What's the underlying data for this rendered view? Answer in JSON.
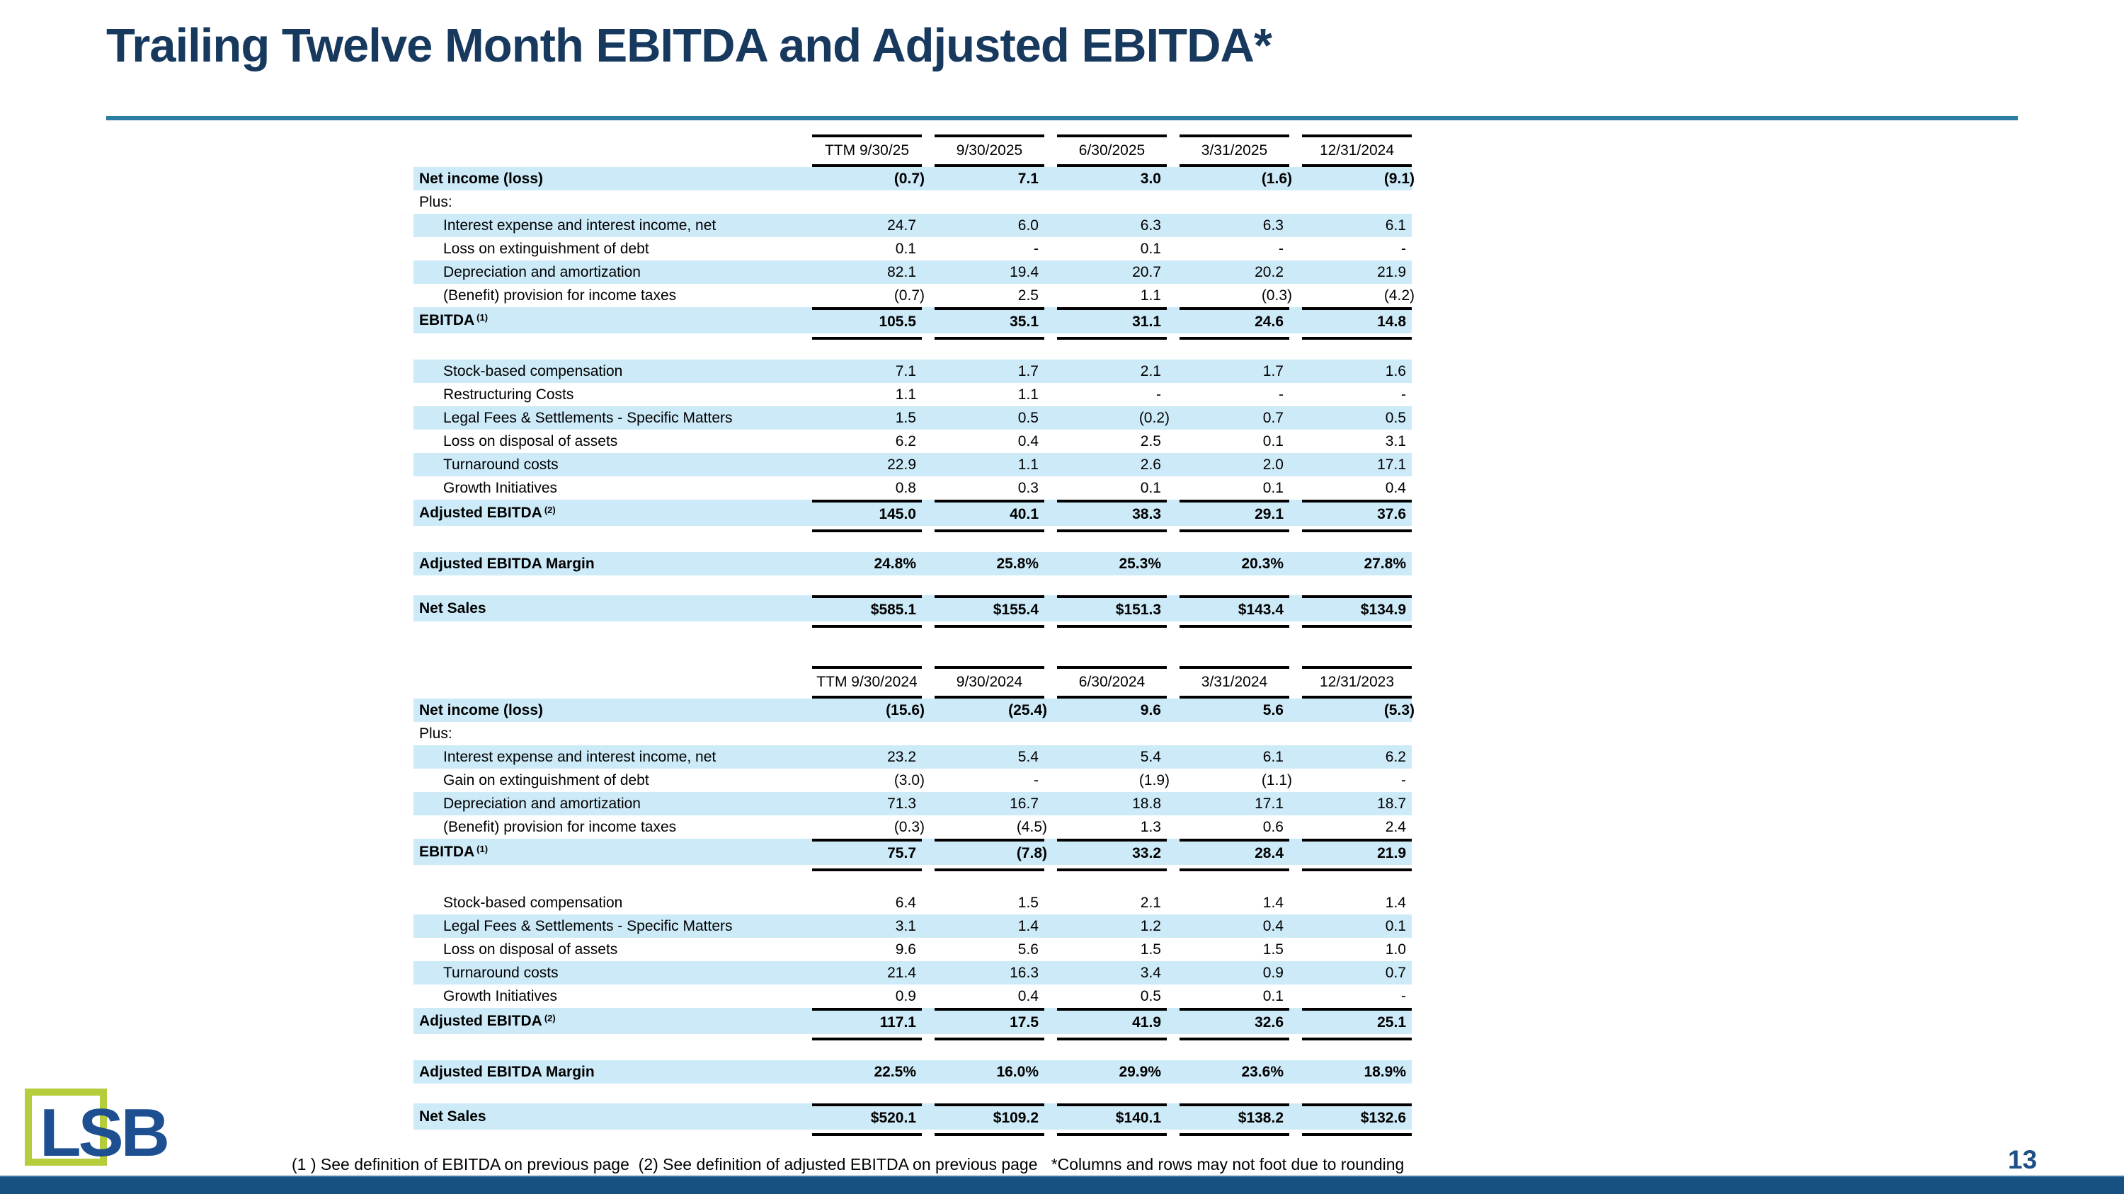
{
  "header": {
    "title": "Trailing Twelve Month EBITDA and Adjusted EBITDA*",
    "page_number": "13"
  },
  "logo": {
    "text": "LSB"
  },
  "footnote": "(1 ) See definition of EBITDA on previous page  (2) See definition of adjusted EBITDA on previous page   *Columns and rows may not foot due to rounding",
  "colors": {
    "band": "#cdeaf8",
    "title": "#17395e",
    "rule": "#2b7da1",
    "bottom_bar": "#175082",
    "logo_green": "#b5cd3a",
    "logo_blue": "#1d4f91",
    "page_number": "#1d5084"
  },
  "tables": [
    {
      "columns": [
        "TTM 9/30/25",
        "9/30/2025",
        "6/30/2025",
        "3/31/2025",
        "12/31/2024"
      ],
      "rows": [
        {
          "label": "Net income (loss)",
          "bold": true,
          "shade": true,
          "values": [
            "(0.7)",
            "7.1",
            "3.0",
            "(1.6)",
            "(9.1)"
          ]
        },
        {
          "label": "Plus:",
          "values": [
            "",
            "",
            "",
            "",
            ""
          ]
        },
        {
          "label": "Interest expense and interest income, net",
          "indent": true,
          "shade": true,
          "values": [
            "24.7",
            "6.0",
            "6.3",
            "6.3",
            "6.1"
          ]
        },
        {
          "label": "Loss on extinguishment of debt",
          "indent": true,
          "values": [
            "0.1",
            "-",
            "0.1",
            "-",
            "-"
          ]
        },
        {
          "label": "Depreciation and amortization",
          "indent": true,
          "shade": true,
          "values": [
            "82.1",
            "19.4",
            "20.7",
            "20.2",
            "21.9"
          ]
        },
        {
          "label": "(Benefit) provision for income taxes",
          "indent": true,
          "values": [
            "(0.7)",
            "2.5",
            "1.1",
            "(0.3)",
            "(4.2)"
          ]
        },
        {
          "label": "EBITDA",
          "sup": "(1)",
          "bold": true,
          "shade": true,
          "lines": "both",
          "values": [
            "105.5",
            "35.1",
            "31.1",
            "24.6",
            "14.8"
          ]
        },
        {
          "label": "Stock-based compensation",
          "indent": true,
          "shade": true,
          "gap_before": true,
          "values": [
            "7.1",
            "1.7",
            "2.1",
            "1.7",
            "1.6"
          ]
        },
        {
          "label": "Restructuring Costs",
          "indent": true,
          "values": [
            "1.1",
            "1.1",
            "-",
            "-",
            "-"
          ]
        },
        {
          "label": "Legal Fees & Settlements - Specific Matters",
          "indent": true,
          "shade": true,
          "values": [
            "1.5",
            "0.5",
            "(0.2)",
            "0.7",
            "0.5"
          ]
        },
        {
          "label": "Loss on disposal of assets",
          "indent": true,
          "values": [
            "6.2",
            "0.4",
            "2.5",
            "0.1",
            "3.1"
          ]
        },
        {
          "label": "Turnaround costs",
          "indent": true,
          "shade": true,
          "values": [
            "22.9",
            "1.1",
            "2.6",
            "2.0",
            "17.1"
          ]
        },
        {
          "label": "Growth Initiatives",
          "indent": true,
          "values": [
            "0.8",
            "0.3",
            "0.1",
            "0.1",
            "0.4"
          ]
        },
        {
          "label": "Adjusted EBITDA",
          "sup": "(2)",
          "bold": true,
          "shade": true,
          "lines": "both",
          "values": [
            "145.0",
            "40.1",
            "38.3",
            "29.1",
            "37.6"
          ]
        },
        {
          "label": "Adjusted EBITDA Margin",
          "bold": true,
          "shade": true,
          "gap_before": true,
          "values": [
            "24.8%",
            "25.8%",
            "25.3%",
            "20.3%",
            "27.8%"
          ]
        },
        {
          "label": "Net Sales",
          "bold": true,
          "shade": true,
          "lines": "both",
          "gap_before": true,
          "values": [
            "$585.1",
            "$155.4",
            "$151.3",
            "$143.4",
            "$134.9"
          ]
        }
      ]
    },
    {
      "columns": [
        "TTM 9/30/2024",
        "9/30/2024",
        "6/30/2024",
        "3/31/2024",
        "12/31/2023"
      ],
      "rows": [
        {
          "label": "Net income (loss)",
          "bold": true,
          "shade": true,
          "values": [
            "(15.6)",
            "(25.4)",
            "9.6",
            "5.6",
            "(5.3)"
          ]
        },
        {
          "label": "Plus:",
          "values": [
            "",
            "",
            "",
            "",
            ""
          ]
        },
        {
          "label": "Interest expense and interest income, net",
          "indent": true,
          "shade": true,
          "values": [
            "23.2",
            "5.4",
            "5.4",
            "6.1",
            "6.2"
          ]
        },
        {
          "label": "Gain on extinguishment of debt",
          "indent": true,
          "values": [
            "(3.0)",
            "-",
            "(1.9)",
            "(1.1)",
            "-"
          ]
        },
        {
          "label": "Depreciation and amortization",
          "indent": true,
          "shade": true,
          "values": [
            "71.3",
            "16.7",
            "18.8",
            "17.1",
            "18.7"
          ]
        },
        {
          "label": "(Benefit) provision for income taxes",
          "indent": true,
          "values": [
            "(0.3)",
            "(4.5)",
            "1.3",
            "0.6",
            "2.4"
          ]
        },
        {
          "label": "EBITDA",
          "sup": "(1)",
          "bold": true,
          "shade": true,
          "lines": "both",
          "values": [
            "75.7",
            "(7.8)",
            "33.2",
            "28.4",
            "21.9"
          ]
        },
        {
          "label": "Stock-based compensation",
          "indent": true,
          "gap_before": true,
          "values": [
            "6.4",
            "1.5",
            "2.1",
            "1.4",
            "1.4"
          ]
        },
        {
          "label": "Legal Fees & Settlements - Specific Matters",
          "indent": true,
          "shade": true,
          "values": [
            "3.1",
            "1.4",
            "1.2",
            "0.4",
            "0.1"
          ]
        },
        {
          "label": "Loss on disposal of assets",
          "indent": true,
          "values": [
            "9.6",
            "5.6",
            "1.5",
            "1.5",
            "1.0"
          ]
        },
        {
          "label": "Turnaround costs",
          "indent": true,
          "shade": true,
          "values": [
            "21.4",
            "16.3",
            "3.4",
            "0.9",
            "0.7"
          ]
        },
        {
          "label": "Growth Initiatives",
          "indent": true,
          "values": [
            "0.9",
            "0.4",
            "0.5",
            "0.1",
            "-"
          ]
        },
        {
          "label": "Adjusted EBITDA",
          "sup": "(2)",
          "bold": true,
          "shade": true,
          "lines": "both",
          "values": [
            "117.1",
            "17.5",
            "41.9",
            "32.6",
            "25.1"
          ]
        },
        {
          "label": "Adjusted EBITDA Margin",
          "bold": true,
          "shade": true,
          "gap_before": true,
          "values": [
            "22.5%",
            "16.0%",
            "29.9%",
            "23.6%",
            "18.9%"
          ]
        },
        {
          "label": "Net Sales",
          "bold": true,
          "shade": true,
          "lines": "both",
          "gap_before": true,
          "values": [
            "$520.1",
            "$109.2",
            "$140.1",
            "$138.2",
            "$132.6"
          ]
        }
      ]
    }
  ]
}
